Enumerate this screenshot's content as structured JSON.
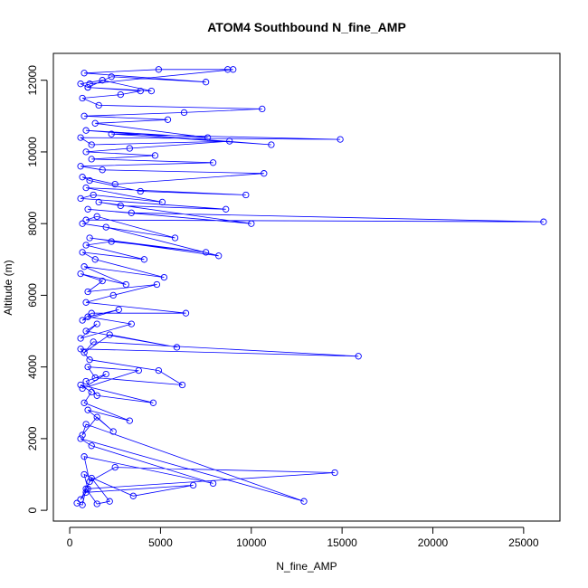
{
  "chart_data": {
    "type": "line",
    "title": "ATOM4 Southbound N_fine_AMP",
    "xlabel": "N_fine_AMP",
    "ylabel": "Altitude (m)",
    "xlim": [
      -900,
      27000
    ],
    "ylim": [
      -300,
      12750
    ],
    "xticks": [
      0,
      5000,
      10000,
      15000,
      20000,
      25000
    ],
    "yticks": [
      0,
      2000,
      4000,
      6000,
      8000,
      10000,
      12000
    ],
    "grid": false,
    "legend": "none",
    "marker": "open-circle",
    "color": "#0000ff",
    "series": [
      {
        "name": "",
        "x": [
          400,
          700,
          900,
          1500,
          2200,
          1200,
          600,
          900,
          6800,
          3500,
          800,
          1000,
          14600,
          2500,
          1100,
          800,
          7900,
          1200,
          600,
          12900,
          900,
          700,
          1500,
          2400,
          1000,
          3300,
          800,
          1200,
          600,
          4600,
          1500,
          900,
          2000,
          700,
          3800,
          1000,
          1400,
          6200,
          4900,
          1100,
          600,
          15900,
          1300,
          800,
          2200,
          5900,
          900,
          1500,
          600,
          3400,
          1000,
          2700,
          700,
          1200,
          6400,
          900,
          2400,
          4800,
          1000,
          1800,
          600,
          3100,
          800,
          5200,
          1400,
          700,
          4100,
          900,
          2300,
          7500,
          1100,
          8200,
          2000,
          700,
          5800,
          1500,
          900,
          26100,
          3400,
          1000,
          10000,
          1600,
          2800,
          8600,
          600,
          1300,
          5100,
          900,
          9700,
          3900,
          1100,
          700,
          2500,
          10700,
          1800,
          600,
          7900,
          1200,
          4700,
          900,
          3300,
          8800,
          1200,
          600,
          14900,
          2300,
          11100,
          900,
          7600,
          1400,
          5400,
          800,
          6300,
          10600,
          1600,
          700,
          2800,
          3900,
          1000,
          600,
          1800,
          4500,
          1000,
          2300,
          7500,
          800,
          4900,
          8700,
          9000,
          1100
        ],
        "y": [
          200,
          150,
          600,
          180,
          250,
          900,
          300,
          500,
          700,
          400,
          1000,
          600,
          1050,
          1200,
          800,
          1500,
          750,
          1800,
          2000,
          250,
          2400,
          2100,
          2600,
          2200,
          2800,
          2500,
          3000,
          3300,
          3500,
          3000,
          3200,
          3600,
          3800,
          3400,
          3900,
          4000,
          3700,
          3500,
          3900,
          4200,
          4500,
          4300,
          4700,
          4400,
          4900,
          4550,
          5000,
          5200,
          4800,
          5200,
          5400,
          5600,
          5300,
          5500,
          5500,
          5800,
          6000,
          6300,
          6100,
          6400,
          6600,
          6300,
          6800,
          6500,
          7000,
          7200,
          7000,
          7400,
          7500,
          7200,
          7600,
          7100,
          7900,
          8000,
          7600,
          8200,
          8100,
          8050,
          8300,
          8400,
          8000,
          8600,
          8500,
          8400,
          8700,
          8800,
          8600,
          9000,
          8800,
          8900,
          9200,
          9300,
          9100,
          9400,
          9500,
          9600,
          9700,
          9800,
          9900,
          10000,
          10100,
          10300,
          10200,
          10400,
          10350,
          10500,
          10200,
          10600,
          10400,
          10800,
          10900,
          11000,
          11100,
          11200,
          11300,
          11500,
          11600,
          11700,
          11800,
          11900,
          12000,
          11700,
          11800,
          12100,
          11950,
          12200,
          12300,
          12300,
          12300,
          11900
        ]
      }
    ]
  }
}
